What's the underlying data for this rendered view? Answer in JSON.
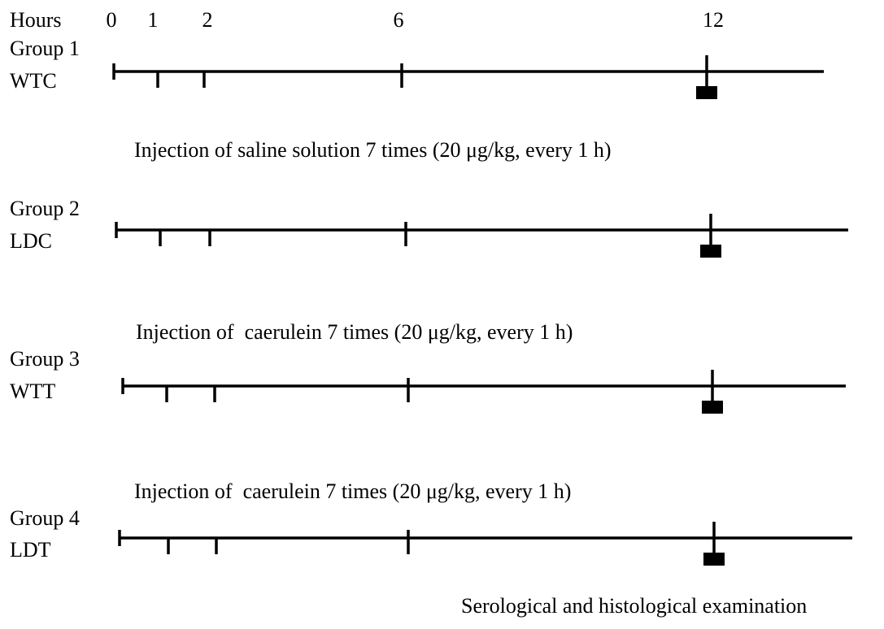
{
  "header": {
    "label": "Hours",
    "hours": [
      "0",
      "1",
      "2",
      "6",
      "12"
    ]
  },
  "groups": [
    {
      "title": "Group 1",
      "code": "WTC"
    },
    {
      "title": "Group 2",
      "code": "LDC"
    },
    {
      "title": "Group 3",
      "code": "WTT"
    },
    {
      "title": "Group 4",
      "code": "LDT"
    }
  ],
  "notes": [
    "Injection of saline solution 7 times (20 μg/kg, every 1 h)",
    "Injection of  caerulein 7 times (20 μg/kg, every 1 h)",
    "Injection of  caerulein 7 times (20 μg/kg, every 1 h)",
    "Serological and histological examination"
  ]
}
